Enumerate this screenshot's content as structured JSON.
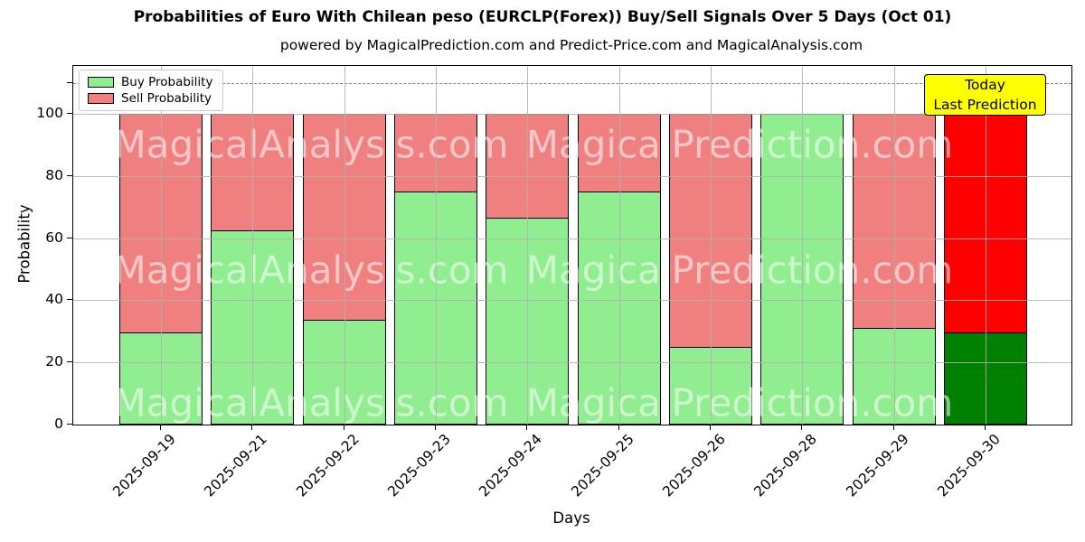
{
  "figure": {
    "title": "Probabilities of Euro With Chilean peso (EURCLP(Forex)) Buy/Sell Signals Over 5 Days (Oct 01)",
    "subtitle": "powered by MagicalPrediction.com and Predict-Price.com and MagicalAnalysis.com",
    "ylabel": "Probability",
    "xlabel": "Days"
  },
  "legend": {
    "items": [
      {
        "label": "Buy Probability",
        "color": "#90ee90"
      },
      {
        "label": "Sell Probability",
        "color": "#f08080"
      }
    ]
  },
  "annotation": {
    "line1": "Today",
    "line2": "Last Prediction",
    "bg_color": "#ffff00"
  },
  "watermarks": {
    "left": "MagicalAnalysis.com",
    "right": "MagicalPrediction.com"
  },
  "colors": {
    "buy": "#90ee90",
    "sell": "#f08080",
    "today_buy": "#008000",
    "today_sell": "#ff0000",
    "grid": "#b0b0b0",
    "dashed_line": "#7f7f7f",
    "annotation_bg": "#ffff00"
  },
  "chart_data": {
    "type": "bar",
    "stacked": true,
    "title": "Probabilities of Euro With Chilean peso (EURCLP(Forex)) Buy/Sell Signals Over 5 Days (Oct 01)",
    "xlabel": "Days",
    "ylabel": "Probability",
    "categories": [
      "2025-09-19",
      "2025-09-21",
      "2025-09-22",
      "2025-09-23",
      "2025-09-24",
      "2025-09-25",
      "2025-09-26",
      "2025-09-28",
      "2025-09-29",
      "2025-09-30"
    ],
    "series": [
      {
        "name": "Buy Probability",
        "color": "#90ee90",
        "values": [
          29.4,
          62.5,
          33.3,
          75.0,
          66.7,
          75.0,
          24.5,
          100.0,
          30.8,
          29.4
        ]
      },
      {
        "name": "Sell Probability",
        "color": "#f08080",
        "values": [
          70.6,
          37.5,
          66.7,
          25.0,
          33.3,
          25.0,
          75.5,
          0.0,
          69.2,
          70.6
        ]
      }
    ],
    "today_bar": {
      "index": 9,
      "buy_color": "#008000",
      "sell_color": "#ff0000"
    },
    "yticks": [
      0,
      20,
      40,
      60,
      80,
      100
    ],
    "ylim": [
      0,
      115.4
    ],
    "dashed_line_y": 110,
    "grid": true,
    "legend_position": "upper left"
  }
}
